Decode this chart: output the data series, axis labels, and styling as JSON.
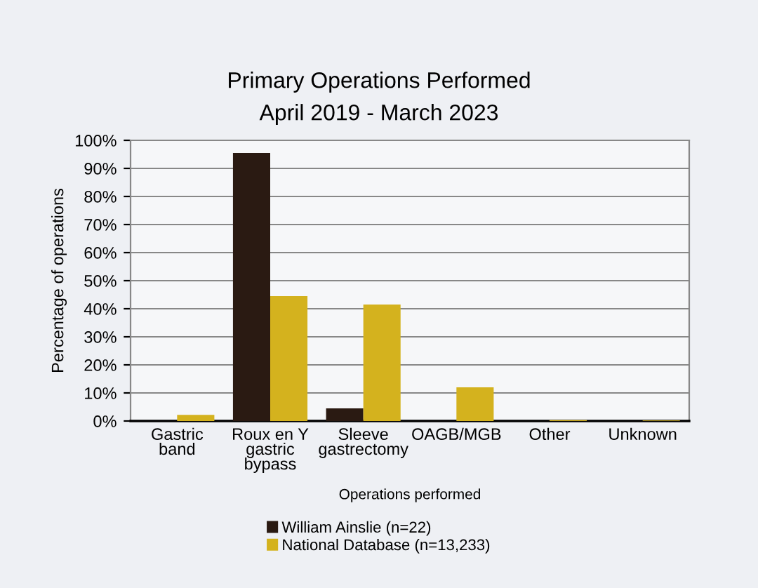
{
  "chart_data": {
    "type": "bar",
    "title": "Primary Operations Performed\nApril 2019 - March 2023",
    "xlabel": "Operations performed",
    "ylabel": "Percentage of operations",
    "categories": [
      "Gastric\nband",
      "Roux en Y\ngastric\nbypass",
      "Sleeve\ngastrectomy",
      "OAGB/MGB",
      "Other",
      "Unknown"
    ],
    "series": [
      {
        "name": "William Ainslie (n=22)",
        "color": "#2a1a12",
        "values": [
          0,
          95.5,
          4.5,
          0,
          0,
          0
        ]
      },
      {
        "name": "National Database (n=13,233)",
        "color": "#d4b21e",
        "values": [
          2.2,
          44.5,
          41.5,
          12,
          0.3,
          0.2
        ]
      }
    ],
    "ylim": [
      0,
      100
    ],
    "yticks": [
      {
        "value": 0,
        "label": "0%"
      },
      {
        "value": 10,
        "label": "10%"
      },
      {
        "value": 20,
        "label": "20%"
      },
      {
        "value": 30,
        "label": "30%"
      },
      {
        "value": 40,
        "label": "40%"
      },
      {
        "value": 50,
        "label": "50%"
      },
      {
        "value": 60,
        "label": "60%"
      },
      {
        "value": 70,
        "label": "70%"
      },
      {
        "value": 80,
        "label": "80%"
      },
      {
        "value": 90,
        "label": "90%"
      },
      {
        "value": 100,
        "label": "100%"
      }
    ],
    "grid": "y",
    "legend": "bottom"
  }
}
